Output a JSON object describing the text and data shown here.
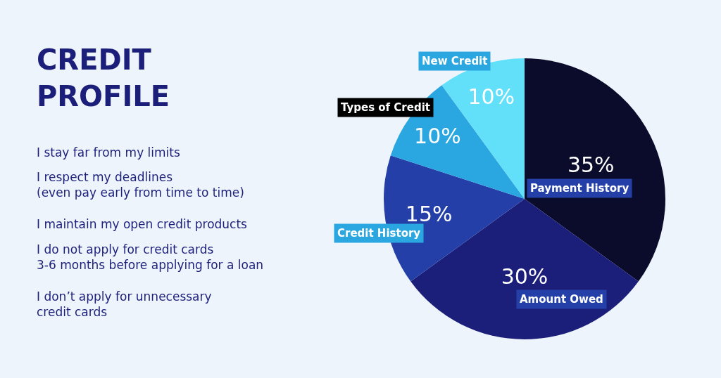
{
  "chart_data": {
    "type": "pie",
    "title": "CREDIT\nPROFILE",
    "categories": [
      "Payment History",
      "Amount Owed",
      "Credit History",
      "Types of Credit",
      "New Credit"
    ],
    "values": [
      35,
      30,
      15,
      10,
      10
    ],
    "value_labels": [
      "35%",
      "30%",
      "15%",
      "10%",
      "10%"
    ],
    "colors": [
      "#0b0b2b",
      "#1c1f7a",
      "#2440a8",
      "#2aa6e0",
      "#62e0fa"
    ],
    "annotations": [
      "I stay far from my limits",
      "I respect my deadlines\n(even pay early from time to time)",
      "I maintain my open credit products",
      "I do not apply for credit cards\n3-6 months before applying for a loan",
      "I don’t apply for unnecessary\ncredit cards"
    ],
    "legend": false
  }
}
